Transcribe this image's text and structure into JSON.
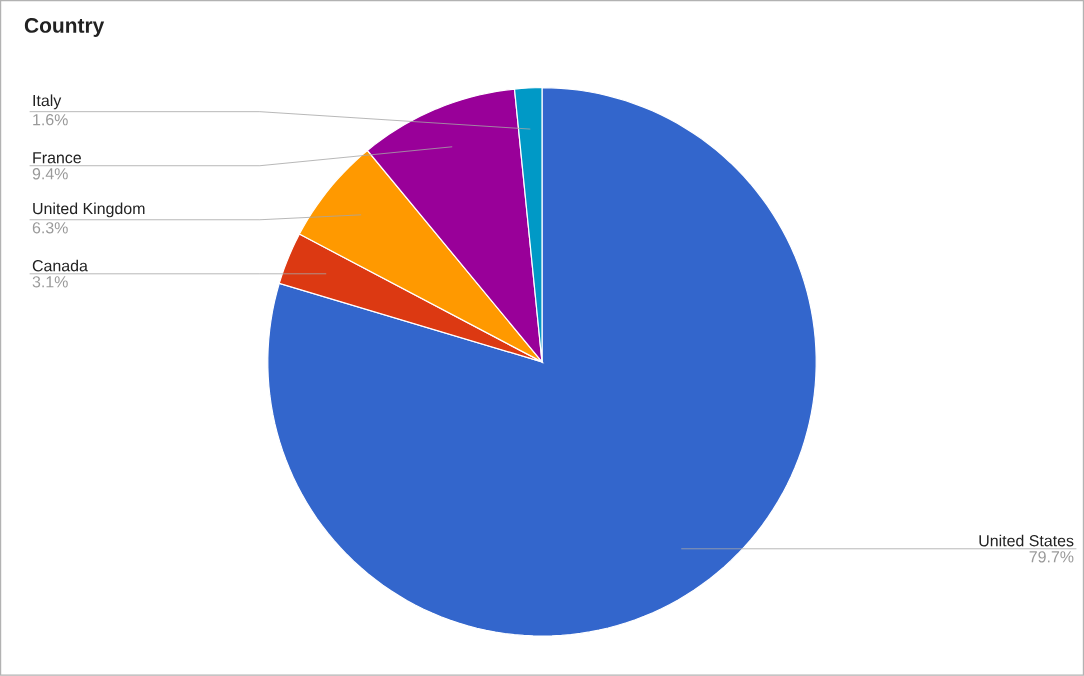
{
  "chart_data": {
    "type": "pie",
    "title": "Country",
    "categories": [
      "United States",
      "Canada",
      "United Kingdom",
      "France",
      "Italy"
    ],
    "values": [
      79.7,
      3.1,
      6.3,
      9.4,
      1.6
    ],
    "colors": [
      "#3366cc",
      "#dc3912",
      "#ff9900",
      "#990099",
      "#0099c6"
    ],
    "value_labels": [
      "79.7%",
      "3.1%",
      "6.3%",
      "9.4%",
      "1.6%"
    ]
  }
}
